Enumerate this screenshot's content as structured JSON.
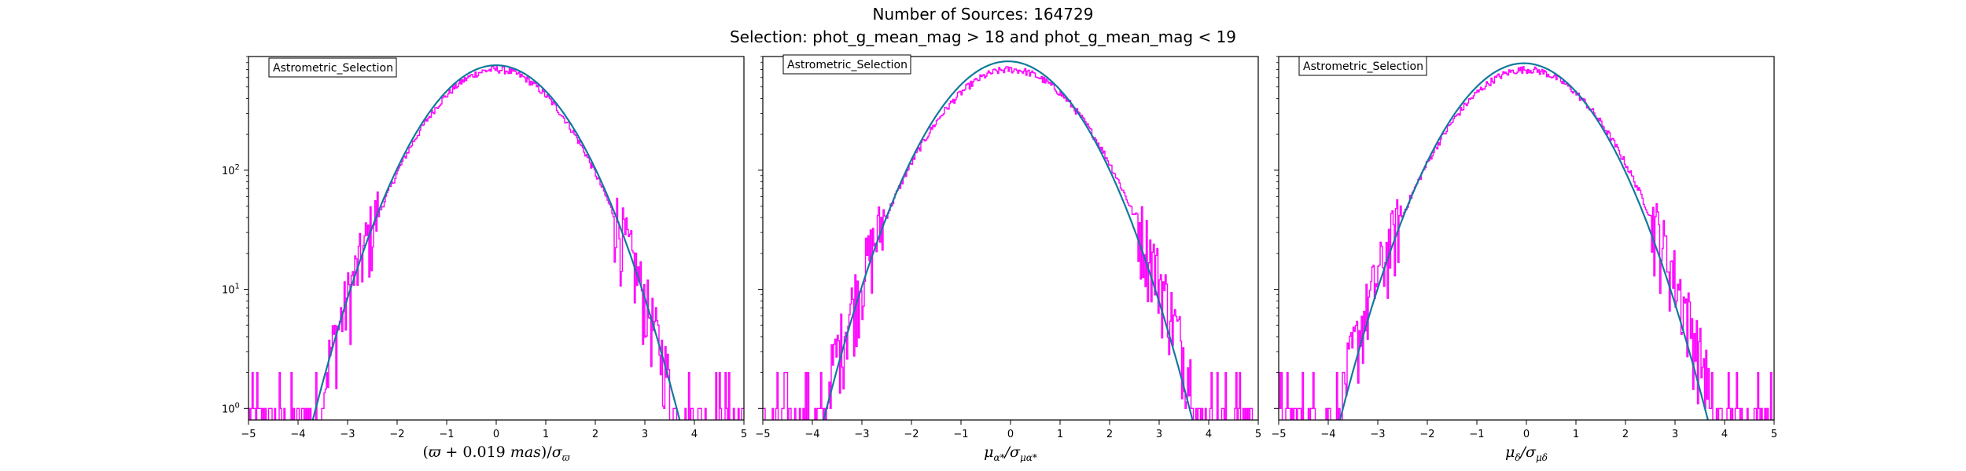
{
  "figure": {
    "title_line1": "Number of Sources: 164729",
    "title_line2": "Selection: phot_g_mean_mag > 18 and phot_g_mean_mag < 19"
  },
  "colors": {
    "histogram": "#ff00ff",
    "fit_curve": "#1f77b4",
    "fit_curve_overlay": "#008080",
    "axes": "#000000"
  },
  "chart_data": [
    {
      "type": "line",
      "legend": "Astrometric_Selection",
      "legend_position": "top-left",
      "xlabel_tex": "(ϖ + 0.019 mas)/σϖ",
      "xlabel_parts": [
        "(",
        "ϖ",
        " + 0.019 ",
        "mas",
        ")/",
        "σ",
        "ϖ"
      ],
      "xlim": [
        -5,
        5
      ],
      "ylim": [
        0.8,
        900
      ],
      "yscale": "log",
      "x_ticks": [
        "−5",
        "−4",
        "−3",
        "−2",
        "−1",
        "0",
        "1",
        "2",
        "3",
        "4",
        "5"
      ],
      "y_ticks": [
        "10",
        "10",
        "10"
      ],
      "y_tick_exponents": [
        "0",
        "1",
        "2"
      ],
      "series": [
        {
          "kind": "histogram",
          "peak": 700,
          "x_range": [
            -5,
            5
          ],
          "sigma": 1.0
        },
        {
          "kind": "gaussian_fit",
          "peak": 760,
          "center": 0.0,
          "sigma": 1.0,
          "x_range": [
            -4,
            4
          ]
        }
      ]
    },
    {
      "type": "line",
      "legend": "Astrometric_Selection",
      "legend_position": "top-left",
      "xlabel_parts": [
        "μ",
        "α*",
        "/σ",
        "μα*"
      ],
      "xlim": [
        -5,
        5
      ],
      "ylim": [
        0.8,
        900
      ],
      "yscale": "log",
      "x_ticks": [
        "−5",
        "−4",
        "−3",
        "−2",
        "−1",
        "0",
        "1",
        "2",
        "3",
        "4",
        "5"
      ],
      "series": [
        {
          "kind": "histogram",
          "peak": 700,
          "x_range": [
            -5,
            5
          ],
          "sigma": 1.05
        },
        {
          "kind": "gaussian_fit",
          "peak": 820,
          "center": -0.05,
          "sigma": 1.0,
          "x_range": [
            -4,
            4
          ]
        }
      ]
    },
    {
      "type": "line",
      "legend": "Astrometric_Selection",
      "legend_position": "top-left",
      "xlabel_parts": [
        "μ",
        "δ",
        "/σ",
        "μδ"
      ],
      "xlim": [
        -5,
        5
      ],
      "ylim": [
        0.8,
        900
      ],
      "yscale": "log",
      "x_ticks": [
        "−5",
        "−4",
        "−3",
        "−2",
        "−1",
        "0",
        "1",
        "2",
        "3",
        "4",
        "5"
      ],
      "series": [
        {
          "kind": "histogram",
          "peak": 700,
          "x_range": [
            -5,
            5
          ],
          "sigma": 1.05
        },
        {
          "kind": "gaussian_fit",
          "peak": 790,
          "center": -0.05,
          "sigma": 1.0,
          "x_range": [
            -4,
            4
          ]
        }
      ]
    }
  ]
}
